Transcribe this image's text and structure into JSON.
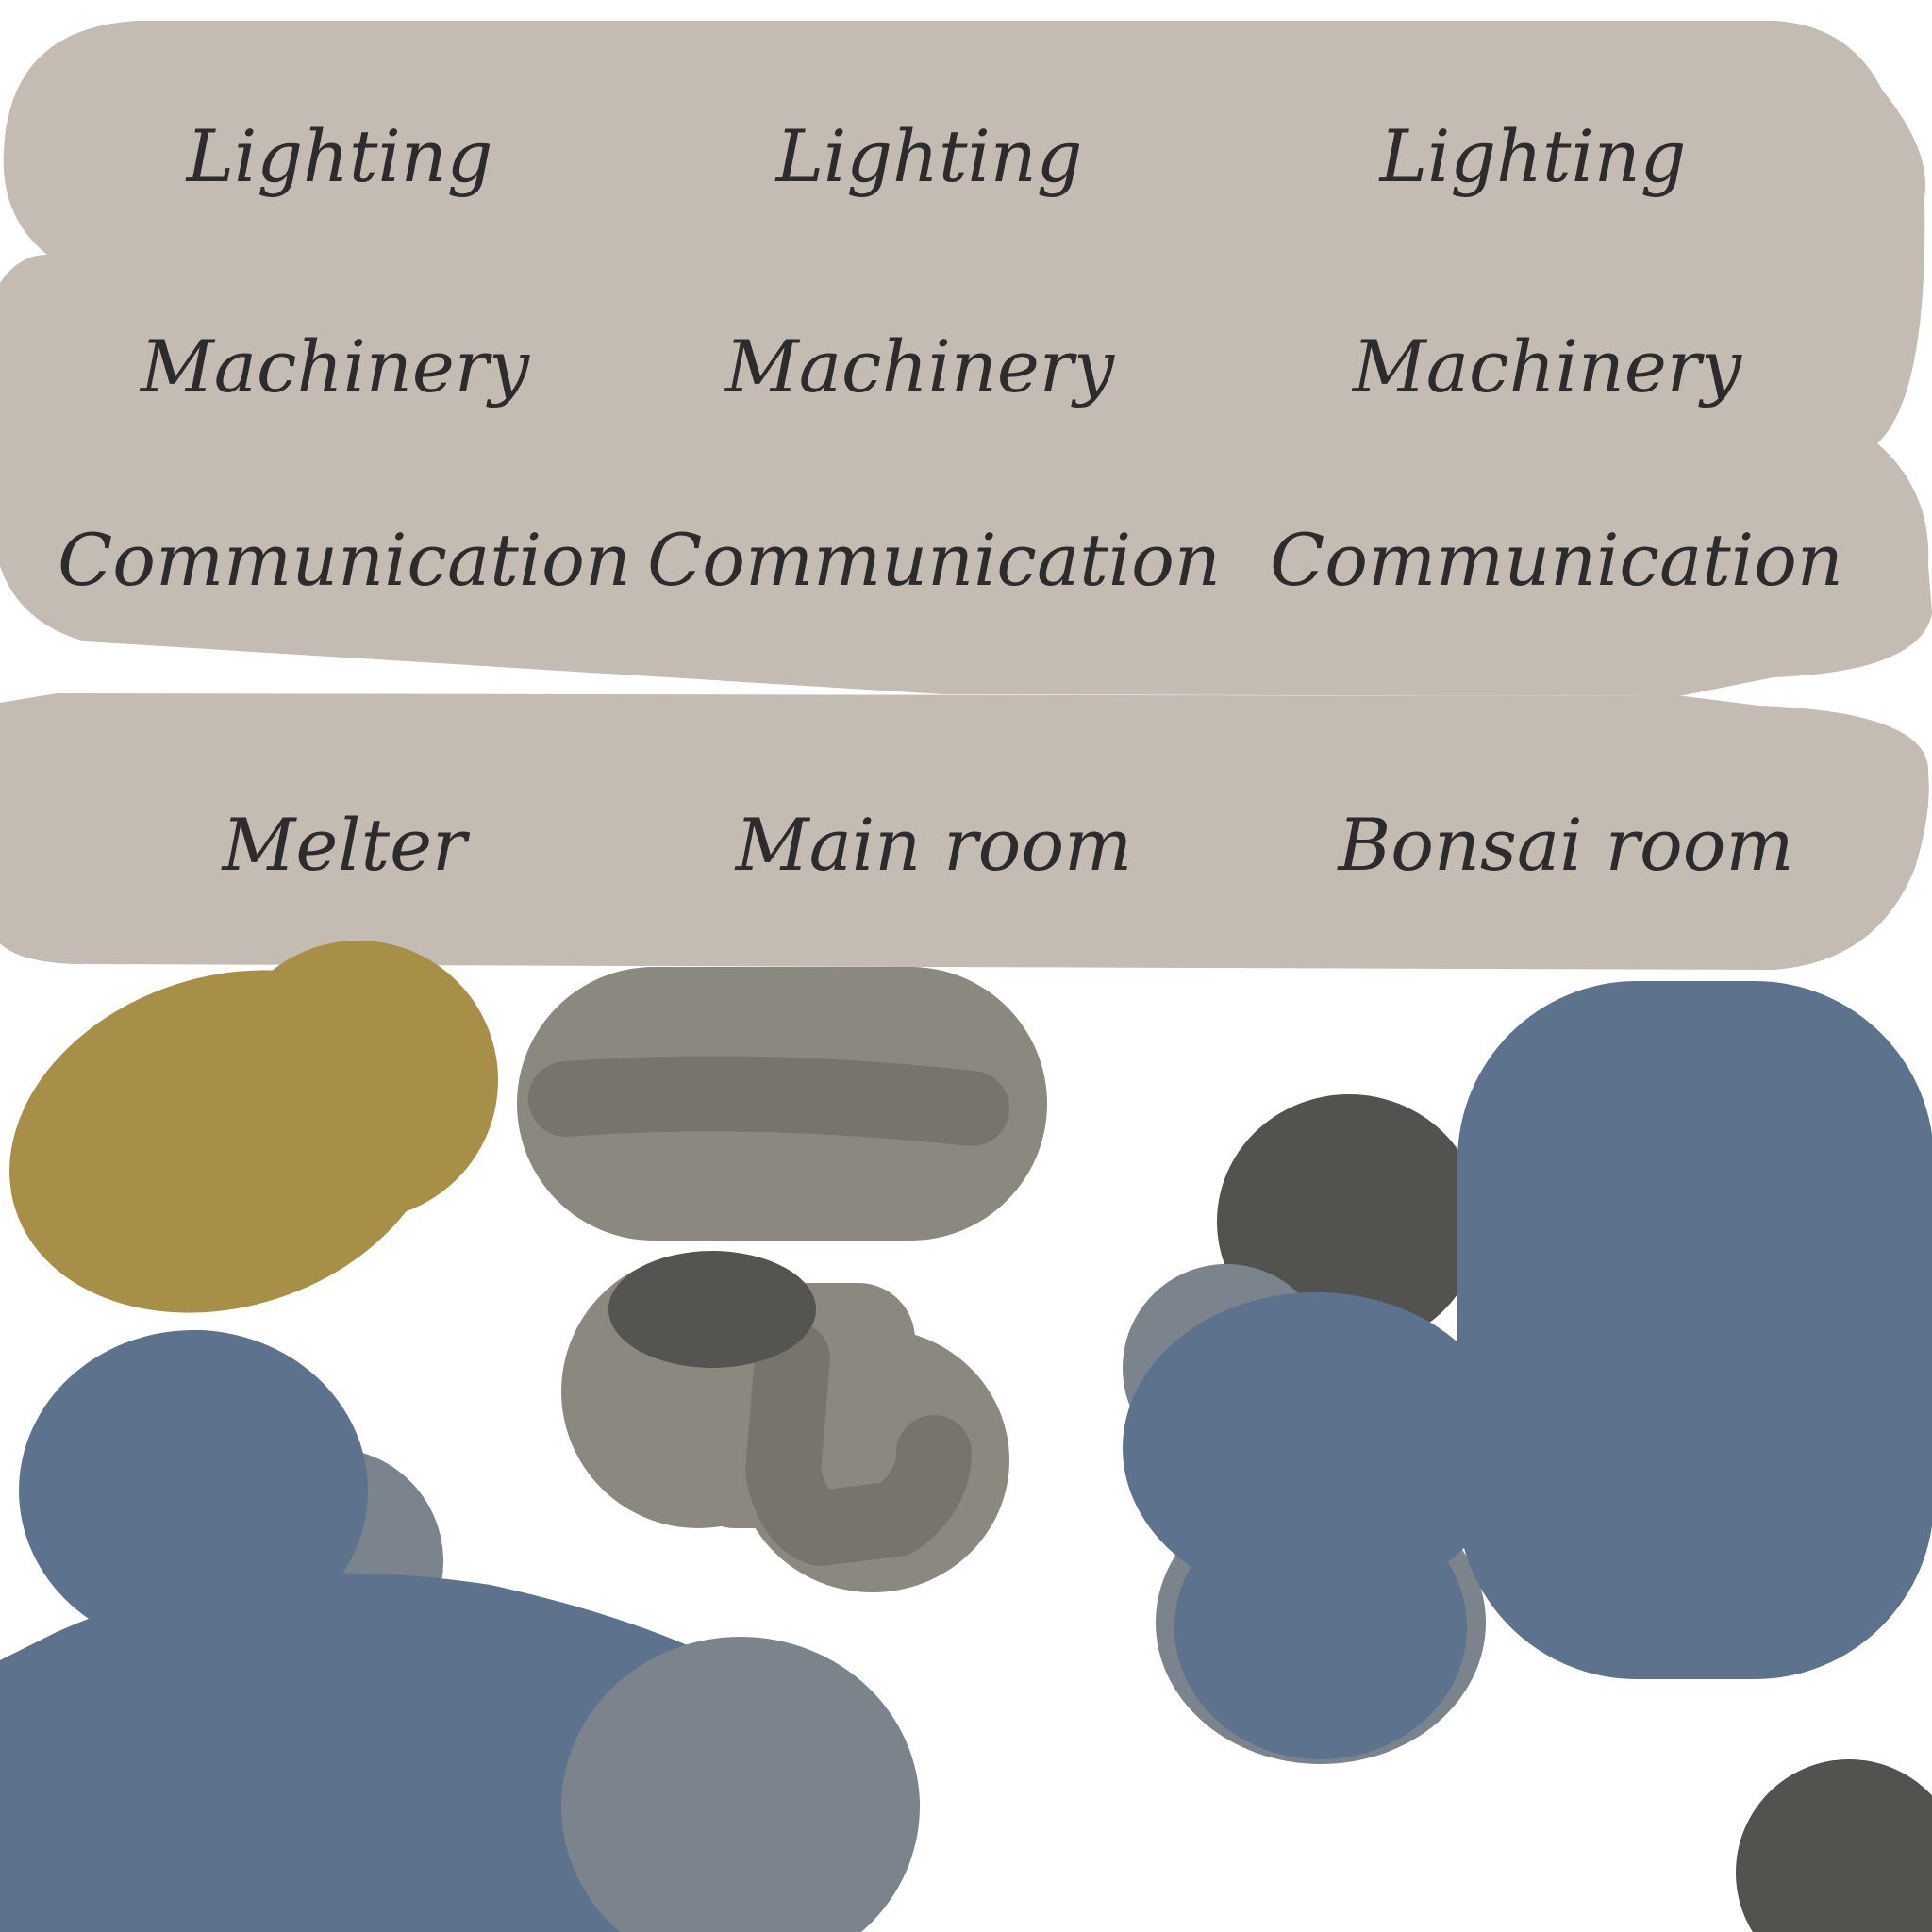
{
  "colors": {
    "background": "#ffffff",
    "panel": "#c4bbb2",
    "text": "#2d2b2b",
    "mustard": "#a78f48",
    "stone": "#8b8880",
    "stone_dark": "#77746c",
    "charcoal": "#545551",
    "charcoal_dark": "#52524f",
    "slate_blue": "#5d738d",
    "slate_gray": "#7b838c"
  },
  "grid": {
    "rows": [
      {
        "cells": [
          "Lighting",
          "Lighting",
          "Lighting"
        ]
      },
      {
        "cells": [
          "Machinery",
          "Machinery",
          "Machinery"
        ]
      },
      {
        "cells": [
          "Communication",
          "Communication",
          "Communication"
        ]
      }
    ]
  },
  "rooms": [
    "Melter",
    "Main room",
    "Bonsai room"
  ]
}
